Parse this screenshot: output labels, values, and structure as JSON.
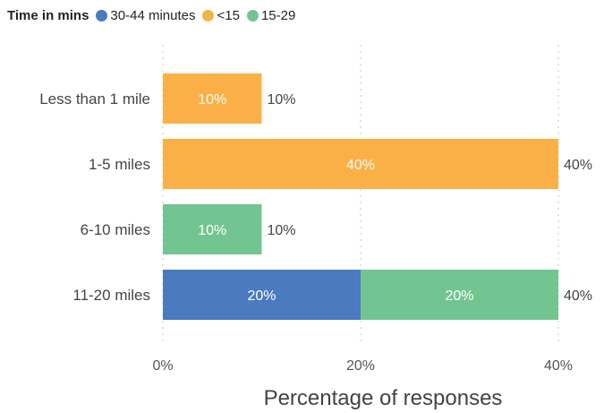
{
  "chart_data": {
    "type": "bar",
    "orientation": "horizontal",
    "stacked": true,
    "legend": {
      "title": "Time in mins",
      "placement": "top-left",
      "items": [
        {
          "name": "30-44 minutes",
          "color": "#4a7ac0"
        },
        {
          "name": "<15",
          "color": "#fbb047"
        },
        {
          "name": "15-29",
          "color": "#72c591"
        }
      ]
    },
    "categories": [
      "Less than 1 mile",
      "1-5 miles",
      "6-10 miles",
      "11-20 miles"
    ],
    "series": [
      {
        "name": "30-44 minutes",
        "color": "#4a7ac0",
        "values": [
          0,
          0,
          0,
          20
        ]
      },
      {
        "name": "<15",
        "color": "#fbb047",
        "values": [
          10,
          40,
          0,
          0
        ]
      },
      {
        "name": "15-29",
        "color": "#72c591",
        "values": [
          0,
          0,
          10,
          20
        ]
      }
    ],
    "totals": [
      "10%",
      "40%",
      "10%",
      "40%"
    ],
    "xlabel": "Percentage of responses",
    "ylabel": "",
    "xlim": [
      0,
      40
    ],
    "xticks": [
      0,
      20,
      40
    ],
    "xtick_labels": [
      "0%",
      "20%",
      "40%"
    ],
    "value_format": "percent",
    "grid": true
  }
}
